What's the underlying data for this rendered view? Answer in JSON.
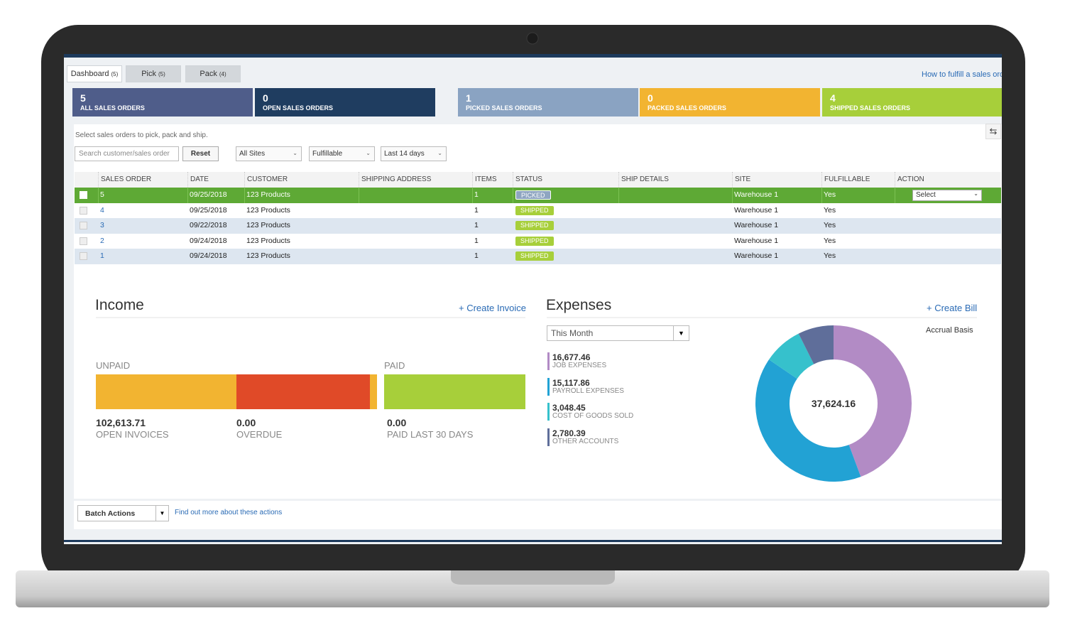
{
  "tabs": [
    {
      "label": "Dashboard",
      "count": "(5)"
    },
    {
      "label": "Pick",
      "count": "(5)"
    },
    {
      "label": "Pack",
      "count": "(4)"
    }
  ],
  "help_link": "How to fulfill a sales orde",
  "summary_cards": [
    {
      "count": 5,
      "label": "ALL SALES ORDERS",
      "color": "#4f5d8a"
    },
    {
      "count": 0,
      "label": "OPEN SALES ORDERS",
      "color": "#1f3d60"
    },
    {
      "count": 1,
      "label": "PICKED SALES ORDERS",
      "color": "#8aa3c2"
    },
    {
      "count": 0,
      "label": "PACKED SALES ORDERS",
      "color": "#f2b431"
    },
    {
      "count": 4,
      "label": "SHIPPED SALES ORDERS",
      "color": "#a7cf3a"
    }
  ],
  "instructions": "Select sales orders to pick, pack and ship.",
  "search_placeholder": "Search customer/sales order",
  "reset_button": "Reset",
  "filters": [
    "All Sites",
    "Fulfillable",
    "Last 14 days"
  ],
  "table": {
    "columns": [
      "SALES ORDER",
      "DATE",
      "CUSTOMER",
      "SHIPPING ADDRESS",
      "ITEMS",
      "STATUS",
      "SHIP DETAILS",
      "SITE",
      "FULFILLABLE",
      "ACTION"
    ],
    "rows": [
      {
        "sales_order": "5",
        "date": "09/25/2018",
        "customer": "123 Products",
        "items": "1",
        "status": "PICKED",
        "site": "Warehouse 1",
        "fulfillable": "Yes",
        "action": "Select"
      },
      {
        "sales_order": "4",
        "date": "09/25/2018",
        "customer": "123 Products",
        "items": "1",
        "status": "SHIPPED",
        "site": "Warehouse 1",
        "fulfillable": "Yes"
      },
      {
        "sales_order": "3",
        "date": "09/22/2018",
        "customer": "123 Products",
        "items": "1",
        "status": "SHIPPED",
        "site": "Warehouse 1",
        "fulfillable": "Yes"
      },
      {
        "sales_order": "2",
        "date": "09/24/2018",
        "customer": "123 Products",
        "items": "1",
        "status": "SHIPPED",
        "site": "Warehouse 1",
        "fulfillable": "Yes"
      },
      {
        "sales_order": "1",
        "date": "09/24/2018",
        "customer": "123 Products",
        "items": "1",
        "status": "SHIPPED",
        "site": "Warehouse 1",
        "fulfillable": "Yes"
      }
    ]
  },
  "income": {
    "title": "Income",
    "link": "+ Create Invoice",
    "unpaid_label": "UNPAID",
    "paid_label": "PAID",
    "stats": [
      {
        "amount": "102,613.71",
        "label": "OPEN INVOICES"
      },
      {
        "amount": "0.00",
        "label": "OVERDUE"
      },
      {
        "amount": "0.00",
        "label": "PAID LAST 30 DAYS"
      }
    ]
  },
  "expenses": {
    "title": "Expenses",
    "link": "+ Create Bill",
    "period": "This Month",
    "basis": "Accrual Basis",
    "total": "37,624.16",
    "items": [
      {
        "value": 16677.46,
        "value_label": "16,677.46",
        "label": "JOB EXPENSES",
        "color": "#b28bc5"
      },
      {
        "value": 15117.86,
        "value_label": "15,117.86",
        "label": "PAYROLL EXPENSES",
        "color": "#22a2d4"
      },
      {
        "value": 3048.45,
        "value_label": "3,048.45",
        "label": "COST OF GOODS SOLD",
        "color": "#36c1cc"
      },
      {
        "value": 2780.39,
        "value_label": "2,780.39",
        "label": "OTHER ACCOUNTS",
        "color": "#5f6e9a"
      }
    ]
  },
  "batch_actions": "Batch Actions",
  "batch_link": "Find out more about these actions"
}
